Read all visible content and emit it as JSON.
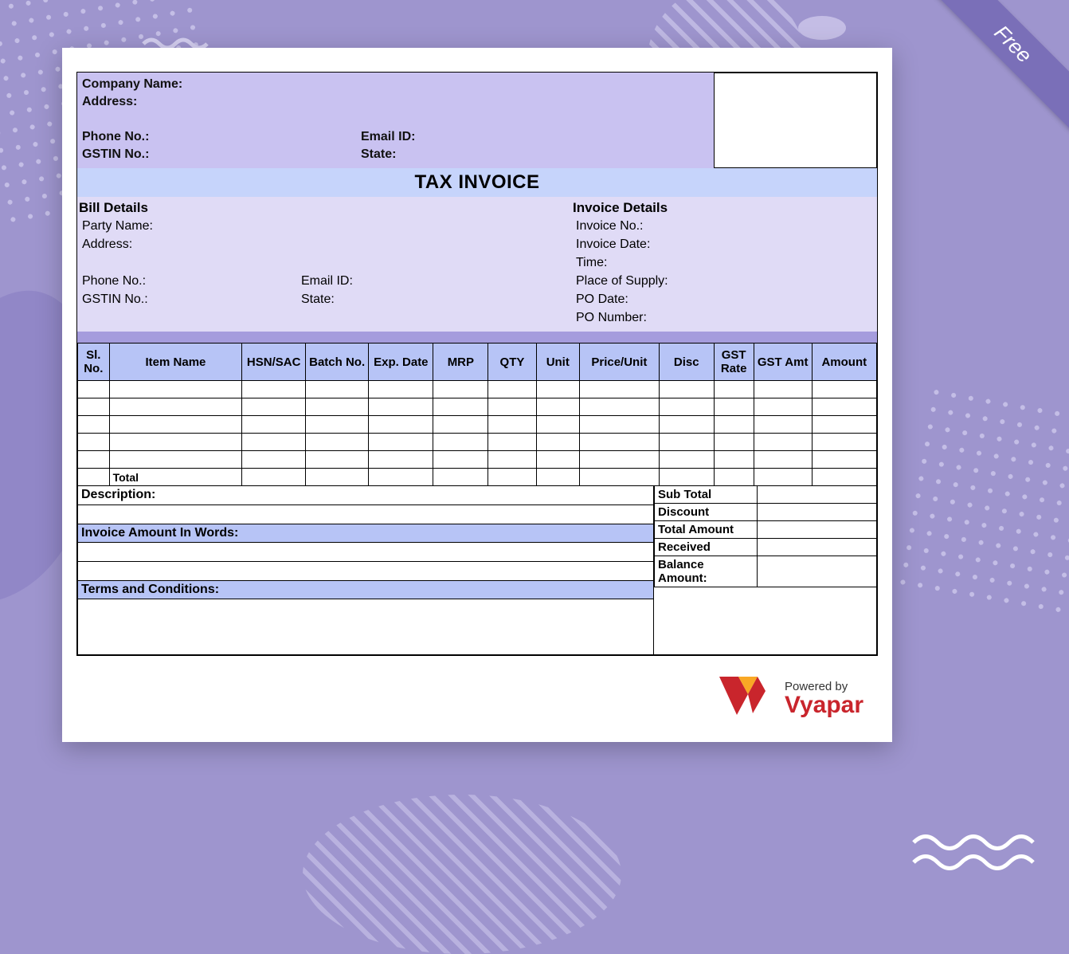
{
  "ribbon_text": "Free",
  "colors": {
    "page_bg": "#9e95ce",
    "header_bg": "#c9c2f1",
    "title_bg": "#c6d4fb",
    "details_bg": "#e0dbf6",
    "spacer_bg": "#a59cdd",
    "table_header_bg": "#b7c4f6",
    "section_label_bg": "#b7c4f6",
    "ribbon_bg": "#7a6fb8",
    "brand_red": "#c9252c",
    "brand_orange": "#f9a825"
  },
  "header": {
    "company_name_label": "Company Name:",
    "address_label": "Address:",
    "phone_label": "Phone No.:",
    "email_label": "Email ID:",
    "gstin_label": "GSTIN No.:",
    "state_label": "State:"
  },
  "title": "TAX INVOICE",
  "bill": {
    "section": "Bill Details",
    "party_label": "Party Name:",
    "address_label": "Address:",
    "phone_label": "Phone No.:",
    "email_label": "Email ID:",
    "gstin_label": "GSTIN No.:",
    "state_label": "State:"
  },
  "inv": {
    "section": "Invoice Details",
    "no_label": "Invoice No.:",
    "date_label": "Invoice Date:",
    "time_label": "Time:",
    "pos_label": "Place of Supply:",
    "podate_label": "PO Date:",
    "ponum_label": "PO Number:"
  },
  "item_table": {
    "columns": [
      "Sl. No.",
      "Item Name",
      "HSN/SAC",
      "Batch No.",
      "Exp. Date",
      "MRP",
      "QTY",
      "Unit",
      "Price/Unit",
      "Disc",
      "GST Rate",
      "GST Amt",
      "Amount"
    ],
    "blank_rows": 5,
    "total_label": "Total"
  },
  "footer": {
    "description_label": "Description:",
    "words_label": "Invoice Amount In Words:",
    "terms_label": "Terms and Conditions:"
  },
  "summary": {
    "subtotal_label": "Sub Total",
    "discount_label": "Discount",
    "total_label": "Total Amount",
    "received_label": "Received",
    "balance_label": "Balance Amount:"
  },
  "powered": {
    "small": "Powered by",
    "brand": "Vyapar"
  }
}
